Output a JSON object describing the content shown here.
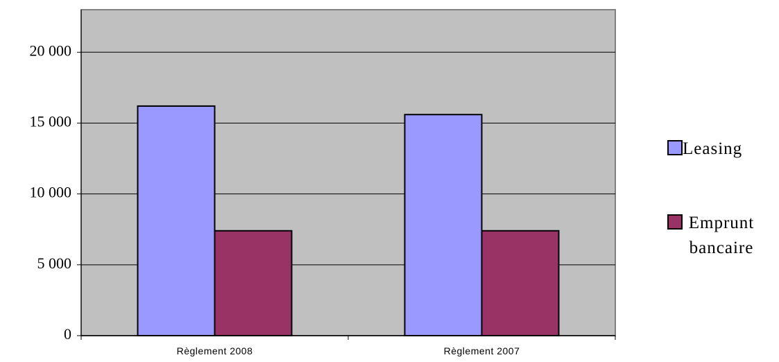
{
  "chart_data": {
    "type": "bar",
    "categories": [
      "Règlement 2008",
      "Règlement 2007"
    ],
    "series": [
      {
        "name": "Leasing",
        "color": "#9999ff",
        "values": [
          16200,
          15600
        ]
      },
      {
        "name": "Emprunt bancaire",
        "color": "#993366",
        "values": [
          7400,
          7400
        ]
      }
    ],
    "ylim": [
      0,
      23000
    ],
    "yticks": [
      0,
      {
        "value": 5000,
        "label": "5 000"
      },
      {
        "value": 10000,
        "label": "10 000"
      },
      {
        "value": 15000,
        "label": "15 000"
      },
      {
        "value": 20000,
        "label": "20 000"
      }
    ],
    "grid": true,
    "legend": "right",
    "plot_background": "#c0c0c0"
  }
}
